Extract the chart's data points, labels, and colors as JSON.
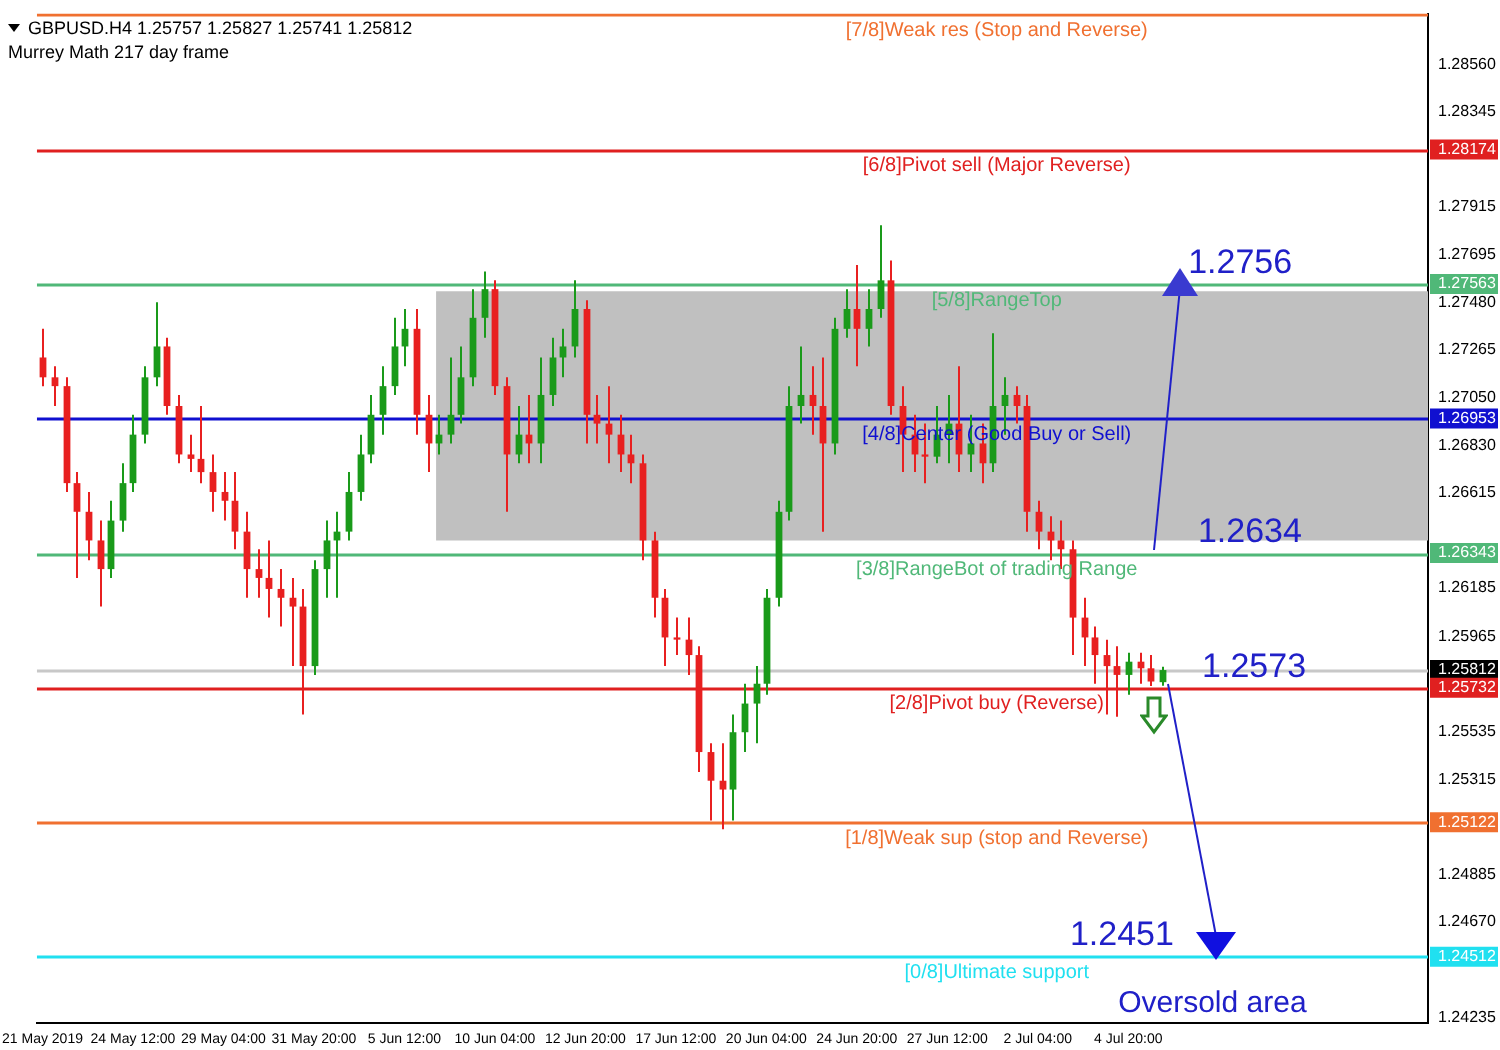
{
  "chart_data": {
    "type": "candlestick",
    "title": "GBPUSD.H4  1.25757 1.25827 1.25741 1.25812",
    "subtitle": "Murrey Math 217 day frame",
    "categories": [
      "21 May 2019",
      null,
      null,
      null,
      null,
      null,
      null,
      null,
      "24 May 12:00",
      null,
      null,
      null,
      null,
      null,
      null,
      null,
      "29 May 04:00",
      null,
      null,
      null,
      null,
      null,
      null,
      null,
      "31 May 20:00",
      null,
      null,
      null,
      null,
      null,
      null,
      null,
      "5 Jun 12:00",
      null,
      null,
      null,
      null,
      null,
      null,
      null,
      "10 Jun 04:00",
      null,
      null,
      null,
      null,
      null,
      null,
      null,
      "12 Jun 20:00",
      null,
      null,
      null,
      null,
      null,
      null,
      null,
      "17 Jun 12:00",
      null,
      null,
      null,
      null,
      null,
      null,
      null,
      "20 Jun 04:00",
      null,
      null,
      null,
      null,
      null,
      null,
      null,
      "24 Jun 20:00",
      null,
      null,
      null,
      null,
      null,
      null,
      null,
      "27 Jun 12:00",
      null,
      null,
      null,
      null,
      null,
      null,
      null,
      "2 Jul 04:00",
      null,
      null,
      null,
      null,
      null,
      null,
      null,
      "4 Jul 20:00",
      null,
      null,
      null,
      null,
      null,
      null,
      null,
      null,
      null,
      null,
      null,
      null,
      null,
      null,
      null,
      null,
      null,
      null,
      null,
      null,
      null,
      null,
      null,
      null,
      null,
      null
    ],
    "ohlc": [
      [
        1.2723,
        1.2736,
        1.271,
        1.2714
      ],
      [
        1.2714,
        1.2719,
        1.2701,
        1.271
      ],
      [
        1.271,
        1.2714,
        1.2662,
        1.2666
      ],
      [
        1.2666,
        1.2671,
        1.2623,
        1.2653
      ],
      [
        1.2653,
        1.2662,
        1.2631,
        1.264
      ],
      [
        1.264,
        1.2649,
        1.261,
        1.2627
      ],
      [
        1.2627,
        1.2658,
        1.2623,
        1.2649
      ],
      [
        1.2649,
        1.2675,
        1.2644,
        1.2666
      ],
      [
        1.2666,
        1.2697,
        1.2662,
        1.2688
      ],
      [
        1.2688,
        1.2719,
        1.2684,
        1.2714
      ],
      [
        1.2714,
        1.2748,
        1.271,
        1.2728
      ],
      [
        1.2728,
        1.2732,
        1.2697,
        1.2701
      ],
      [
        1.2701,
        1.2706,
        1.2675,
        1.2679
      ],
      [
        1.2679,
        1.2688,
        1.2671,
        1.2677
      ],
      [
        1.2677,
        1.2701,
        1.2666,
        1.2671
      ],
      [
        1.2671,
        1.2679,
        1.2653,
        1.2662
      ],
      [
        1.2662,
        1.2671,
        1.2649,
        1.2658
      ],
      [
        1.2658,
        1.2671,
        1.2636,
        1.2644
      ],
      [
        1.2644,
        1.2653,
        1.2614,
        1.2627
      ],
      [
        1.2627,
        1.2636,
        1.2614,
        1.2623
      ],
      [
        1.2623,
        1.264,
        1.2605,
        1.2618
      ],
      [
        1.2618,
        1.2627,
        1.2601,
        1.2614
      ],
      [
        1.2614,
        1.2623,
        1.2583,
        1.261
      ],
      [
        1.261,
        1.2618,
        1.2561,
        1.2583
      ],
      [
        1.2583,
        1.2631,
        1.2579,
        1.2627
      ],
      [
        1.2627,
        1.2649,
        1.2614,
        1.264
      ],
      [
        1.264,
        1.2653,
        1.2614,
        1.2644
      ],
      [
        1.2644,
        1.2671,
        1.264,
        1.2662
      ],
      [
        1.2662,
        1.2688,
        1.2658,
        1.2679
      ],
      [
        1.2679,
        1.2706,
        1.2675,
        1.2697
      ],
      [
        1.2697,
        1.2719,
        1.2688,
        1.271
      ],
      [
        1.271,
        1.2741,
        1.2706,
        1.2728
      ],
      [
        1.2728,
        1.2745,
        1.2719,
        1.2736
      ],
      [
        1.2736,
        1.2745,
        1.2688,
        1.2697
      ],
      [
        1.2697,
        1.2706,
        1.2671,
        1.2684
      ],
      [
        1.2684,
        1.2697,
        1.2679,
        1.2688
      ],
      [
        1.2688,
        1.2723,
        1.2684,
        1.2697
      ],
      [
        1.2697,
        1.2728,
        1.2693,
        1.2714
      ],
      [
        1.2714,
        1.2754,
        1.271,
        1.2741
      ],
      [
        1.2741,
        1.2762,
        1.2732,
        1.2754
      ],
      [
        1.2754,
        1.2758,
        1.2706,
        1.271
      ],
      [
        1.271,
        1.2714,
        1.2653,
        1.2679
      ],
      [
        1.2679,
        1.2701,
        1.2675,
        1.2688
      ],
      [
        1.2688,
        1.2706,
        1.2675,
        1.2684
      ],
      [
        1.2684,
        1.2723,
        1.2675,
        1.2706
      ],
      [
        1.2706,
        1.2732,
        1.2701,
        1.2723
      ],
      [
        1.2723,
        1.2736,
        1.2714,
        1.2728
      ],
      [
        1.2728,
        1.2758,
        1.2723,
        1.2745
      ],
      [
        1.2745,
        1.2749,
        1.2684,
        1.2697
      ],
      [
        1.2697,
        1.2706,
        1.2684,
        1.2693
      ],
      [
        1.2693,
        1.271,
        1.2675,
        1.2688
      ],
      [
        1.2688,
        1.2697,
        1.2671,
        1.2679
      ],
      [
        1.2679,
        1.2688,
        1.2666,
        1.2675
      ],
      [
        1.2675,
        1.2679,
        1.2631,
        1.264
      ],
      [
        1.264,
        1.2644,
        1.2605,
        1.2614
      ],
      [
        1.2614,
        1.2618,
        1.2583,
        1.2596
      ],
      [
        1.2596,
        1.2605,
        1.2588,
        1.2595
      ],
      [
        1.2595,
        1.2605,
        1.2579,
        1.2588
      ],
      [
        1.2588,
        1.2592,
        1.2535,
        1.2544
      ],
      [
        1.2544,
        1.2548,
        1.2513,
        1.2531
      ],
      [
        1.2531,
        1.2548,
        1.2509,
        1.2527
      ],
      [
        1.2527,
        1.2561,
        1.2513,
        1.2553
      ],
      [
        1.2553,
        1.2575,
        1.2544,
        1.2566
      ],
      [
        1.2566,
        1.2583,
        1.2548,
        1.2575
      ],
      [
        1.2575,
        1.2618,
        1.257,
        1.2614
      ],
      [
        1.2614,
        1.2658,
        1.261,
        1.2653
      ],
      [
        1.2653,
        1.271,
        1.2649,
        1.2701
      ],
      [
        1.2701,
        1.2728,
        1.2693,
        1.2706
      ],
      [
        1.2706,
        1.2719,
        1.2688,
        1.2701
      ],
      [
        1.2701,
        1.2723,
        1.2644,
        1.2684
      ],
      [
        1.2684,
        1.2741,
        1.2679,
        1.2736
      ],
      [
        1.2736,
        1.2754,
        1.2732,
        1.2745
      ],
      [
        1.2745,
        1.2765,
        1.2719,
        1.2736
      ],
      [
        1.2736,
        1.2754,
        1.2728,
        1.2745
      ],
      [
        1.2745,
        1.2783,
        1.2741,
        1.2758
      ],
      [
        1.2758,
        1.2767,
        1.2697,
        1.2701
      ],
      [
        1.2701,
        1.271,
        1.2671,
        1.2688
      ],
      [
        1.2688,
        1.2697,
        1.2671,
        1.2679
      ],
      [
        1.2679,
        1.2693,
        1.2666,
        1.2678
      ],
      [
        1.2678,
        1.2701,
        1.2675,
        1.2688
      ],
      [
        1.2688,
        1.2706,
        1.2675,
        1.2693
      ],
      [
        1.2693,
        1.2719,
        1.2671,
        1.2679
      ],
      [
        1.2679,
        1.2697,
        1.2671,
        1.2684
      ],
      [
        1.2684,
        1.2693,
        1.2666,
        1.2675
      ],
      [
        1.2675,
        1.2734,
        1.2671,
        1.2701
      ],
      [
        1.2701,
        1.2714,
        1.2688,
        1.2706
      ],
      [
        1.2706,
        1.271,
        1.2693,
        1.2701
      ],
      [
        1.2701,
        1.2706,
        1.2644,
        1.2653
      ],
      [
        1.2653,
        1.2658,
        1.2636,
        1.2644
      ],
      [
        1.2644,
        1.2651,
        1.2631,
        1.264
      ],
      [
        1.264,
        1.2649,
        1.2627,
        1.2636
      ],
      [
        1.2636,
        1.264,
        1.2588,
        1.2605
      ],
      [
        1.2605,
        1.2614,
        1.2583,
        1.2596
      ],
      [
        1.2596,
        1.2601,
        1.2575,
        1.2588
      ],
      [
        1.2588,
        1.2595,
        1.2561,
        1.2583
      ],
      [
        1.2583,
        1.2592,
        1.256,
        1.2579
      ],
      [
        1.2579,
        1.2589,
        1.257,
        1.2585
      ],
      [
        1.2585,
        1.2589,
        1.2575,
        1.2582
      ],
      [
        1.2582,
        1.2588,
        1.2574,
        1.2576
      ],
      [
        1.25757,
        1.25827,
        1.25741,
        1.25812
      ],
      null,
      null,
      null,
      null,
      null,
      null,
      null,
      null,
      null,
      null,
      null,
      null,
      null,
      null,
      null,
      null,
      null,
      null,
      null,
      null,
      null,
      null,
      null
    ],
    "ylim": [
      1.2421,
      1.2879
    ],
    "yticks": [
      {
        "value": 1.2856,
        "label": "1.28560"
      },
      1.28345,
      1.28174,
      1.27915,
      1.27695,
      1.27563,
      {
        "value": 1.2748,
        "label": "1.27480"
      },
      1.27265,
      {
        "value": 1.2705,
        "label": "1.27050"
      },
      1.26953,
      {
        "value": 1.2683,
        "label": "1.26830"
      },
      1.26615,
      1.26343,
      1.26185,
      1.25965,
      1.25812,
      1.25732,
      1.25535,
      1.25315,
      1.25122,
      1.24885,
      {
        "value": 1.2467,
        "label": "1.24670"
      },
      1.24512,
      1.24235
    ],
    "ref_lines": [
      {
        "axis": "y",
        "value": 1.28784,
        "label": "[7/8]Weak res (Stop and Reverse)",
        "color": "#f07030"
      },
      {
        "axis": "y",
        "value": 1.28174,
        "label": "[6/8]Pivot sell (Major Reverse)",
        "color": "#e02020"
      },
      {
        "axis": "y",
        "value": 1.27563,
        "label": "[5/8]RangeTop",
        "color": "#50b878"
      },
      {
        "axis": "y",
        "value": 1.26953,
        "label": "[4/8]Center (Good Buy or Sell)",
        "color": "#1010d0"
      },
      {
        "axis": "y",
        "value": 1.26343,
        "label": "[3/8]RangeBot of trading Range",
        "color": "#50b878"
      },
      {
        "axis": "y",
        "value": 1.25812,
        "label": null,
        "color": "#c8c8c8"
      },
      {
        "axis": "y",
        "value": 1.25732,
        "label": "[2/8]Pivot buy (Reverse)",
        "color": "#e02020"
      },
      {
        "axis": "y",
        "value": 1.25122,
        "label": "[1/8]Weak sup (stop and Reverse)",
        "color": "#f07030"
      },
      {
        "axis": "y",
        "value": 1.24512,
        "label": "[0/8]Ultimate support",
        "color": "#20e0f0"
      }
    ],
    "bands": [
      {
        "axis": "y",
        "from": 1.264,
        "to": 1.2753,
        "color": "#c0c0c0"
      }
    ],
    "annotations": [
      {
        "text": "1.2756",
        "y": 1.2756
      },
      {
        "text": "1.2634",
        "y": 1.2634
      },
      {
        "text": "1.2573",
        "y": 1.2573
      },
      {
        "text": "1.2451",
        "y": 1.2451
      },
      "Oversold area"
    ],
    "grid": false,
    "legend": false
  }
}
